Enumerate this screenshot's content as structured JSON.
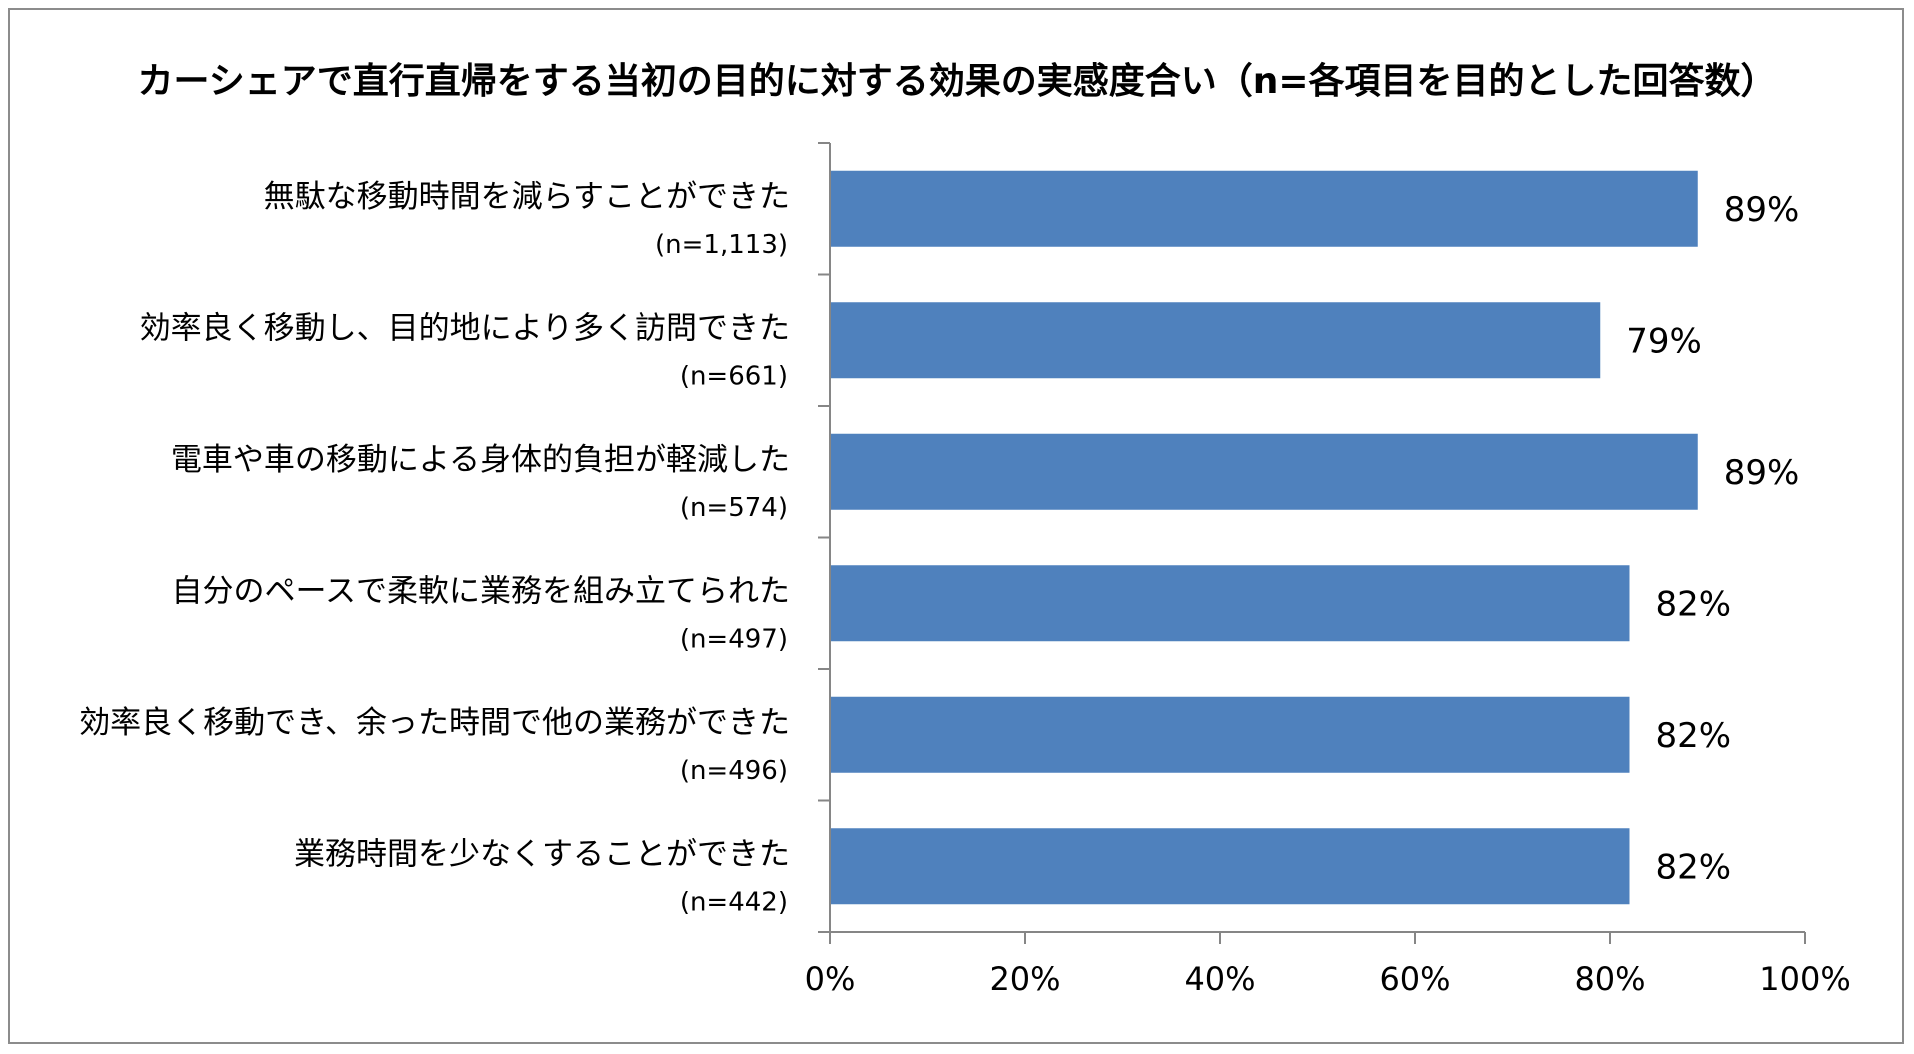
{
  "chart_data": {
    "type": "bar",
    "orientation": "horizontal",
    "title": "カーシェアで直行直帰をする当初の目的に対する効果の実感度合い（n=各項目を目的とした回答数）",
    "categories": [
      "無駄な移動時間を減らすことができた",
      "効率良く移動し、目的地により多く訪問できた",
      "電車や車の移動による身体的負担が軽減した",
      "自分のペースで柔軟に業務を組み立てられた",
      "効率良く移動でき、余った時間で他の業務ができた",
      "業務時間を少なくすることができた"
    ],
    "sample_sizes": [
      "(n=1,113)",
      "(n=661)",
      "(n=574)",
      "(n=497)",
      "(n=496)",
      "(n=442)"
    ],
    "values": [
      89,
      79,
      89,
      82,
      82,
      82
    ],
    "value_labels": [
      "89%",
      "79%",
      "89%",
      "82%",
      "82%",
      "82%"
    ],
    "xlim": [
      0,
      100
    ],
    "xticks": [
      0,
      20,
      40,
      60,
      80,
      100
    ],
    "xtick_labels": [
      "0%",
      "20%",
      "40%",
      "60%",
      "80%",
      "100%"
    ],
    "xlabel": "",
    "ylabel": "",
    "grid": false,
    "legend": "none",
    "bar_color": "#4f81bd",
    "axis_color": "#868686"
  }
}
